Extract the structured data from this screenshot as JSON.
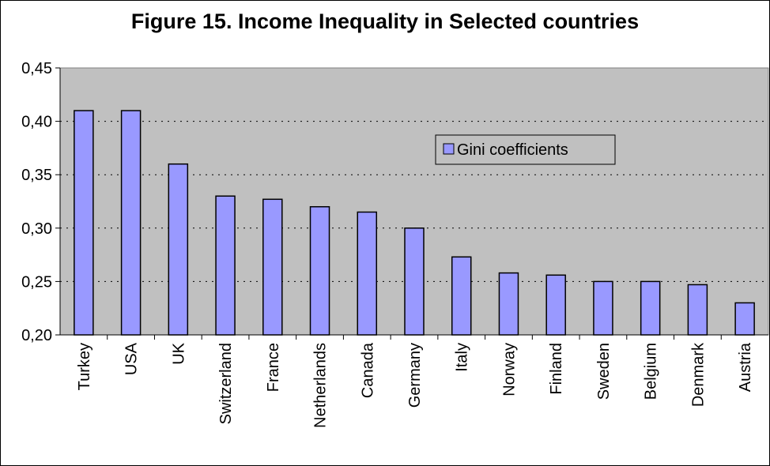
{
  "chart_data": {
    "type": "bar",
    "title": "Figure 15. Income Inequality in Selected countries",
    "categories": [
      "Turkey",
      "USA",
      "UK",
      "Switzerland",
      "France",
      "Netherlands",
      "Canada",
      "Germany",
      "Italy",
      "Norway",
      "Finland",
      "Sweden",
      "Belgium",
      "Denmark",
      "Austria"
    ],
    "series": [
      {
        "name": "Gini coefficients",
        "values": [
          0.41,
          0.41,
          0.36,
          0.33,
          0.327,
          0.32,
          0.315,
          0.3,
          0.273,
          0.258,
          0.256,
          0.25,
          0.25,
          0.247,
          0.23
        ]
      }
    ],
    "yticks": [
      "0,20",
      "0,25",
      "0,30",
      "0,35",
      "0,40",
      "0,45"
    ],
    "ylim": [
      0.2,
      0.45
    ],
    "xlabel": "",
    "ylabel": "",
    "grid": true,
    "legend_position": "top-right",
    "colors": {
      "bar": "#9999ff",
      "plot_background": "#c0c0c0"
    }
  }
}
